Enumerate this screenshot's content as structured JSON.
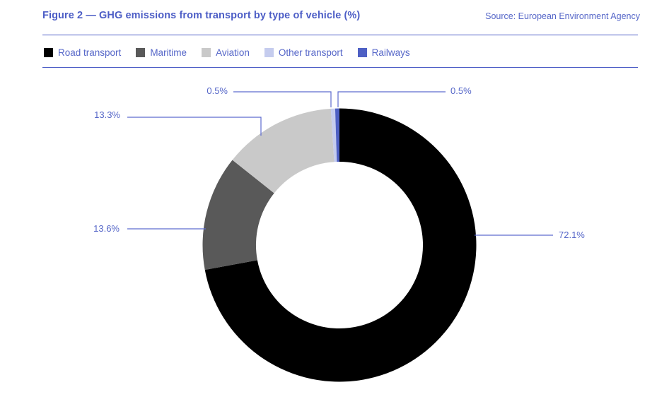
{
  "header": {
    "title": "Figure 2 — GHG emissions from transport by type of vehicle (%)",
    "source": "Source: European Environment Agency"
  },
  "legend": [
    {
      "label": "Road transport",
      "color": "#000000"
    },
    {
      "label": "Maritime",
      "color": "#595959"
    },
    {
      "label": "Aviation",
      "color": "#c9c9c9"
    },
    {
      "label": "Other transport",
      "color": "#c5ccee"
    },
    {
      "label": "Railways",
      "color": "#4e60c4"
    }
  ],
  "chart_data": {
    "type": "pie",
    "subtype": "donut",
    "title": "GHG emissions from transport by type of vehicle (%)",
    "source": "European Environment Agency",
    "categories": [
      "Road transport",
      "Maritime",
      "Aviation",
      "Other transport",
      "Railways"
    ],
    "values": [
      72.1,
      13.6,
      13.3,
      0.5,
      0.5
    ],
    "labels": [
      "72.1%",
      "13.6%",
      "13.3%",
      "0.5%",
      "0.5%"
    ],
    "colors": [
      "#000000",
      "#595959",
      "#c9c9c9",
      "#c5ccee",
      "#4e60c4"
    ],
    "unit": "%",
    "start_angle_deg": 0,
    "direction": "clockwise",
    "donut_hole_ratio": 0.61,
    "legend_position": "top"
  },
  "colors": {
    "accent_text": "#5566c8",
    "title_text": "#4d5ec6",
    "rule": "#4d5ec6",
    "leader_line": "#5d6ccf",
    "background": "#ffffff"
  }
}
